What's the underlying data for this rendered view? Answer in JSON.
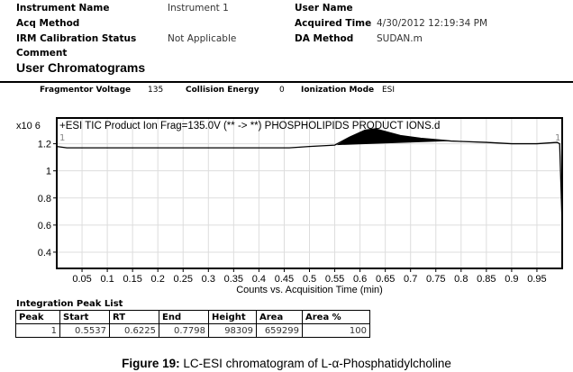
{
  "header": {
    "instrument_name_label": "Instrument Name",
    "instrument_name": "Instrument 1",
    "user_name_label": "User Name",
    "acq_method_label": "Acq Method",
    "acquired_time_label": "Acquired Time",
    "acquired_time": "4/30/2012 12:19:34 PM",
    "irm_label": "IRM Calibration Status",
    "irm": "Not Applicable",
    "da_method_label": "DA Method",
    "da_method": "SUDAN.m",
    "comment_label": "Comment",
    "section_title": "User Chromatograms"
  },
  "params": {
    "frag_label": "Fragmentor Voltage",
    "frag": "135",
    "ce_label": "Collision Energy",
    "ce": "0",
    "ion_label": "Ionization Mode",
    "ion": "ESI"
  },
  "chart_data": {
    "type": "line",
    "title": "+ESI TIC Product Ion Frag=135.0V (** -> **) PHOSPHOLIPIDS PRODUCT IONS.d",
    "y_multiplier": "x10 6",
    "xlabel": "Counts vs. Acquisition Time (min)",
    "xlim": [
      0,
      1.0
    ],
    "ylim": [
      0.28,
      1.39
    ],
    "xticks": [
      "0.05",
      "0.1",
      "0.15",
      "0.2",
      "0.25",
      "0.3",
      "0.35",
      "0.4",
      "0.45",
      "0.5",
      "0.55",
      "0.6",
      "0.65",
      "0.7",
      "0.75",
      "0.8",
      "0.85",
      "0.9",
      "0.95"
    ],
    "yticks": [
      "1.2",
      "1",
      "0.8",
      "0.6",
      "0.4"
    ],
    "grid": true,
    "markers": {
      "start": "1",
      "end": "1",
      "peak": "*"
    },
    "series": [
      {
        "name": "TIC",
        "x": [
          0,
          0.02,
          0.1,
          0.3,
          0.46,
          0.5,
          0.55,
          0.58,
          0.61,
          0.63,
          0.65,
          0.68,
          0.72,
          0.78,
          0.85,
          0.9,
          0.95,
          0.99,
          0.995,
          1.0
        ],
        "y": [
          1.18,
          1.17,
          1.17,
          1.17,
          1.17,
          1.18,
          1.19,
          1.25,
          1.3,
          1.31,
          1.29,
          1.26,
          1.24,
          1.22,
          1.21,
          1.2,
          1.2,
          1.21,
          1.2,
          0.6
        ]
      }
    ],
    "peak_fill": {
      "start": 0.5537,
      "end": 0.7798
    }
  },
  "peak_list": {
    "title": "Integration Peak List",
    "columns": [
      "Peak",
      "Start",
      "RT",
      "End",
      "Height",
      "Area",
      "Area %"
    ],
    "rows": [
      [
        "1",
        "0.5537",
        "0.6225",
        "0.7798",
        "98309",
        "659299",
        "100"
      ]
    ]
  },
  "caption": {
    "bold": "Figure 19:",
    "text": " LC-ESI chromatogram of L-α-Phosphatidylcholine"
  }
}
